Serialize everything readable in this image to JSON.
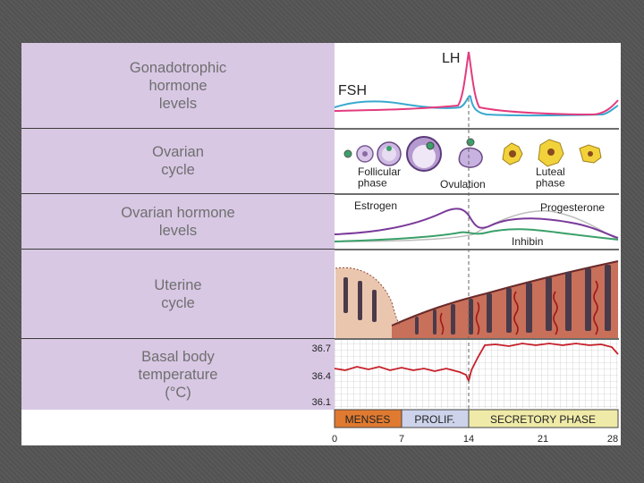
{
  "rows": [
    {
      "label": "Gonadotrophic\nhormone\nlevels"
    },
    {
      "label": "Ovarian\ncycle"
    },
    {
      "label": "Ovarian hormone\nlevels"
    },
    {
      "label": "Uterine\ncycle"
    },
    {
      "label": "Basal body\ntemperature\n(°C)"
    }
  ],
  "gonadotrophic": {
    "lh_label": "LH",
    "fsh_label": "FSH"
  },
  "ovarian_cycle": {
    "follicular_label": "Follicular\nphase",
    "ovulation_label": "Ovulation",
    "luteal_label": "Luteal\nphase"
  },
  "ovarian_hormones": {
    "estrogen_label": "Estrogen",
    "progesterone_label": "Progesterone",
    "inhibin_label": "Inhibin"
  },
  "temperature": {
    "ticks": [
      "36.7",
      "36.4",
      "36.1"
    ]
  },
  "phases": [
    {
      "label": "MENSES",
      "color": "#e07a30"
    },
    {
      "label": "PROLIF.",
      "color": "#cdd3ea"
    },
    {
      "label": "SECRETORY PHASE",
      "color": "#efeaa8"
    }
  ],
  "day_ticks": [
    "0",
    "7",
    "14",
    "21",
    "28"
  ],
  "colors": {
    "lh": "#e23b7e",
    "fsh": "#39a8cf",
    "estrogen": "#7a3a9a",
    "progesterone": "#bdbdbd",
    "inhibin": "#3aa06a",
    "temperature": "#c8202a",
    "endometrium": "#c8705a",
    "label_panel": "#d8c8e4"
  }
}
